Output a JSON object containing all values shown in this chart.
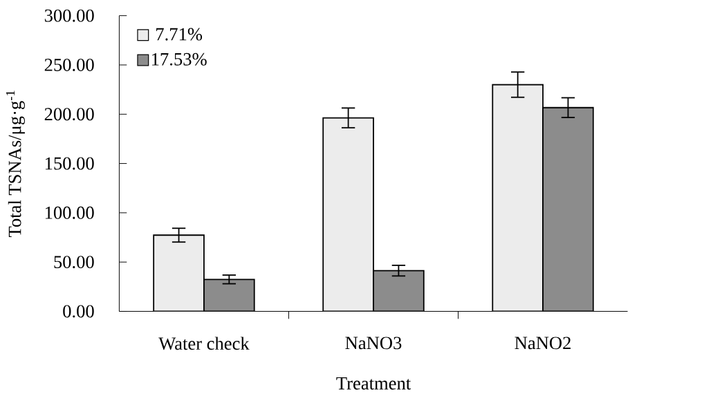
{
  "chart_data": {
    "type": "bar",
    "xlabel": "Treatment",
    "ylabel": "Total TSNAs/μg·g$^{-1}$",
    "categories": [
      "Water check",
      "NaNO3",
      "NaNO2"
    ],
    "series": [
      {
        "name": "7.71%",
        "color": "#ececec",
        "values": [
          77.3,
          196.3,
          230.0
        ],
        "errors": [
          7,
          10,
          12.8
        ]
      },
      {
        "name": "17.53%",
        "color": "#8c8c8c",
        "values": [
          32.4,
          41.3,
          206.7
        ],
        "errors": [
          4.4,
          5.4,
          10
        ]
      }
    ],
    "ylim": [
      0,
      300
    ],
    "yticks": [
      {
        "value": 0,
        "label": "0.00"
      },
      {
        "value": 50,
        "label": "50.00"
      },
      {
        "value": 100,
        "label": "100.00"
      },
      {
        "value": 150,
        "label": "150.00"
      },
      {
        "value": 200,
        "label": "200.00"
      },
      {
        "value": 250,
        "label": "250.00"
      },
      {
        "value": 300,
        "label": "300.00"
      }
    ],
    "grid": false,
    "legend": "top left"
  }
}
